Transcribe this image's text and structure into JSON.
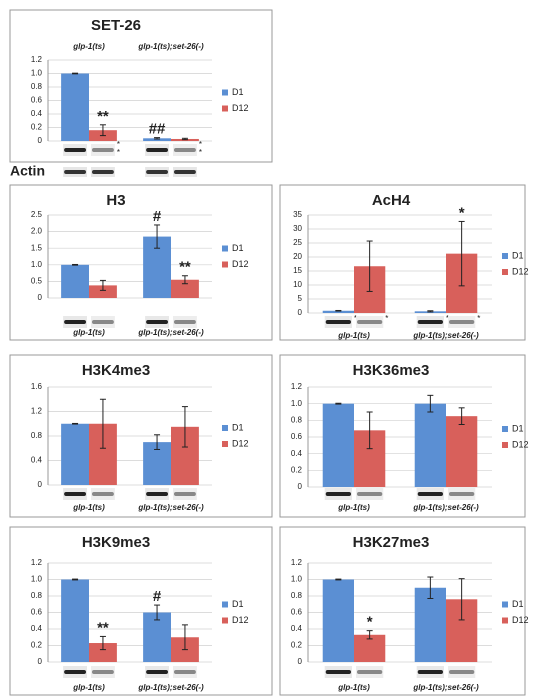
{
  "chart_data": [
    {
      "type": "bar",
      "title": "SET-26",
      "categories": [
        "glp-1(ts)",
        "glp-1(ts);set-26(-)"
      ],
      "series": [
        {
          "name": "D1",
          "color": "#5b8fd3",
          "values": [
            1.0,
            0.04
          ],
          "errors": [
            0.005,
            0.01
          ],
          "significance": [
            null,
            "##"
          ],
          "blot_labels": [
            null,
            null
          ]
        },
        {
          "name": "D12",
          "color": "#d8605b",
          "values": [
            0.16,
            0.03
          ],
          "errors": [
            0.08,
            0.01
          ],
          "significance": [
            "**",
            null
          ],
          "blot_labels": [
            [
              "*",
              "*"
            ],
            [
              "*",
              "*"
            ]
          ]
        }
      ],
      "ylim": [
        0,
        1.2
      ],
      "yticks": [
        0,
        0.2,
        0.4,
        0.6,
        0.8,
        {
          "value": 1,
          "label": "1.0"
        },
        1.2
      ],
      "loading_control": "Actin"
    },
    {
      "type": "bar",
      "title": "H3",
      "categories": [
        "glp-1(ts)",
        "glp-1(ts);set-26(-)"
      ],
      "series": [
        {
          "name": "D1",
          "color": "#5b8fd3",
          "values": [
            1.0,
            1.85
          ],
          "errors": [
            0.01,
            0.35
          ],
          "significance": [
            null,
            "#"
          ],
          "blot_labels": [
            null,
            null
          ]
        },
        {
          "name": "D12",
          "color": "#d8605b",
          "values": [
            0.38,
            0.55
          ],
          "errors": [
            0.15,
            0.12
          ],
          "significance": [
            null,
            "**"
          ],
          "blot_labels": [
            null,
            null
          ]
        }
      ],
      "ylim": [
        0,
        2.5
      ],
      "yticks": [
        0,
        0.5,
        {
          "value": 1,
          "label": "1.0"
        },
        1.5,
        {
          "value": 2,
          "label": "2.0"
        },
        2.5
      ]
    },
    {
      "type": "bar",
      "title": "AcH4",
      "categories": [
        "glp-1(ts)",
        "glp-1(ts);set-26(-)"
      ],
      "series": [
        {
          "name": "D1",
          "color": "#5b8fd3",
          "values": [
            0.8,
            0.6
          ],
          "errors": [
            0.1,
            0.2
          ],
          "significance": [
            null,
            null
          ],
          "blot_labels": [
            [
              "*"
            ],
            [
              "*"
            ]
          ]
        },
        {
          "name": "D12",
          "color": "#d8605b",
          "values": [
            16.7,
            21.2
          ],
          "errors": [
            9,
            11.5
          ],
          "significance": [
            null,
            "*"
          ],
          "blot_labels": [
            [
              "*"
            ],
            [
              "*"
            ]
          ]
        }
      ],
      "ylim": [
        0,
        35
      ],
      "yticks": [
        0,
        5,
        10,
        15,
        20,
        25,
        30,
        35
      ]
    },
    {
      "type": "bar",
      "title": "H3K4me3",
      "categories": [
        "glp-1(ts)",
        "glp-1(ts);set-26(-)"
      ],
      "series": [
        {
          "name": "D1",
          "color": "#5b8fd3",
          "values": [
            1.0,
            0.7
          ],
          "errors": [
            0.005,
            0.12
          ],
          "significance": [
            null,
            null
          ],
          "blot_labels": [
            null,
            null
          ]
        },
        {
          "name": "D12",
          "color": "#d8605b",
          "values": [
            1.0,
            0.95
          ],
          "errors": [
            0.4,
            0.33
          ],
          "significance": [
            null,
            null
          ],
          "blot_labels": [
            null,
            null
          ]
        }
      ],
      "ylim": [
        0,
        1.6
      ],
      "yticks": [
        0,
        0.4,
        0.8,
        1.2,
        1.6
      ]
    },
    {
      "type": "bar",
      "title": "H3K36me3",
      "categories": [
        "glp-1(ts)",
        "glp-1(ts);set-26(-)"
      ],
      "series": [
        {
          "name": "D1",
          "color": "#5b8fd3",
          "values": [
            1.0,
            1.0
          ],
          "errors": [
            0.005,
            0.1
          ],
          "significance": [
            null,
            null
          ],
          "blot_labels": [
            null,
            null
          ]
        },
        {
          "name": "D12",
          "color": "#d8605b",
          "values": [
            0.68,
            0.85
          ],
          "errors": [
            0.22,
            0.1
          ],
          "significance": [
            null,
            null
          ],
          "blot_labels": [
            null,
            null
          ]
        }
      ],
      "ylim": [
        0,
        1.2
      ],
      "yticks": [
        0,
        0.2,
        0.4,
        0.6,
        0.8,
        {
          "value": 1,
          "label": "1.0"
        },
        1.2
      ]
    },
    {
      "type": "bar",
      "title": "H3K9me3",
      "categories": [
        "glp-1(ts)",
        "glp-1(ts);set-26(-)"
      ],
      "series": [
        {
          "name": "D1",
          "color": "#5b8fd3",
          "values": [
            1.0,
            0.6
          ],
          "errors": [
            0.005,
            0.09
          ],
          "significance": [
            null,
            "#"
          ],
          "blot_labels": [
            null,
            null
          ]
        },
        {
          "name": "D12",
          "color": "#d8605b",
          "values": [
            0.23,
            0.3
          ],
          "errors": [
            0.08,
            0.15
          ],
          "significance": [
            "**",
            null
          ],
          "blot_labels": [
            null,
            null
          ]
        }
      ],
      "ylim": [
        0,
        1.2
      ],
      "yticks": [
        0,
        0.2,
        0.4,
        0.6,
        0.8,
        {
          "value": 1,
          "label": "1.0"
        },
        1.2
      ]
    },
    {
      "type": "bar",
      "title": "H3K27me3",
      "categories": [
        "glp-1(ts)",
        "glp-1(ts);set-26(-)"
      ],
      "series": [
        {
          "name": "D1",
          "color": "#5b8fd3",
          "values": [
            1.0,
            0.9
          ],
          "errors": [
            0.005,
            0.13
          ],
          "significance": [
            null,
            null
          ],
          "blot_labels": [
            null,
            null
          ]
        },
        {
          "name": "D12",
          "color": "#d8605b",
          "values": [
            0.33,
            0.76
          ],
          "errors": [
            0.05,
            0.25
          ],
          "significance": [
            "*",
            null
          ],
          "blot_labels": [
            null,
            null
          ]
        }
      ],
      "ylim": [
        0,
        1.2
      ],
      "yticks": [
        0,
        0.2,
        0.4,
        0.6,
        0.8,
        {
          "value": 1,
          "label": "1.0"
        },
        1.2
      ]
    }
  ]
}
